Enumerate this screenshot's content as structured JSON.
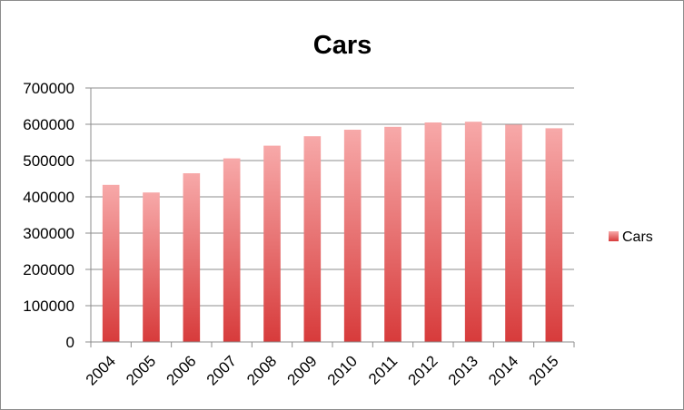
{
  "chart_data": {
    "type": "bar",
    "title": "Cars",
    "xlabel": "",
    "ylabel": "",
    "categories": [
      "2004",
      "2005",
      "2006",
      "2007",
      "2008",
      "2009",
      "2010",
      "2011",
      "2012",
      "2013",
      "2014",
      "2015"
    ],
    "series": [
      {
        "name": "Cars",
        "values": [
          433000,
          412000,
          465000,
          506000,
          541000,
          567000,
          585000,
          593000,
          605000,
          607000,
          599000,
          589000
        ]
      }
    ],
    "ylim": [
      0,
      700000
    ],
    "yticks": [
      "0",
      "100000",
      "200000",
      "300000",
      "400000",
      "500000",
      "600000",
      "700000"
    ],
    "grid": true,
    "legend_position": "right",
    "colors": {
      "bar_top": "#f7a9a9",
      "bar_bottom": "#d73b3b",
      "grid": "#8c8c8c"
    }
  }
}
